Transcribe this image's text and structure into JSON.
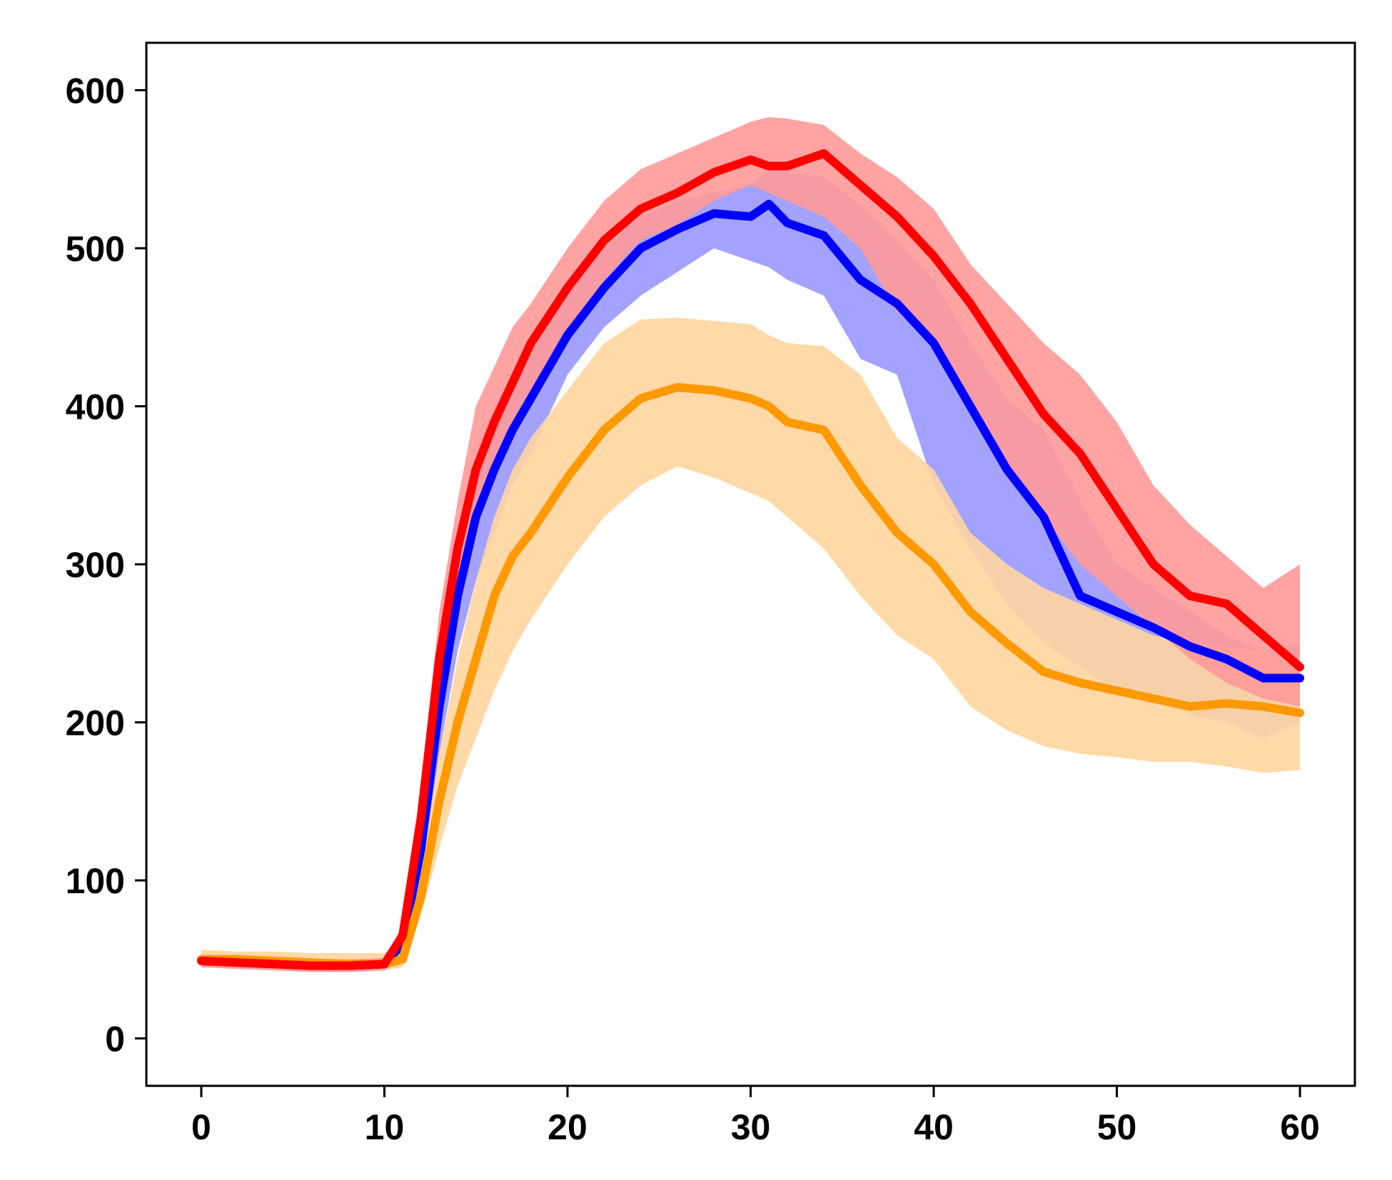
{
  "chart_data": {
    "type": "line",
    "title": "",
    "xlabel": "",
    "ylabel": "",
    "xlim": [
      -3,
      63
    ],
    "ylim": [
      -30,
      630
    ],
    "x_ticks": [
      0,
      10,
      20,
      30,
      40,
      50,
      60
    ],
    "y_ticks": [
      0,
      100,
      200,
      300,
      400,
      500,
      600
    ],
    "x_tick_labels": [
      "0",
      "10",
      "20",
      "30",
      "40",
      "50",
      "60"
    ],
    "y_tick_labels": [
      "0",
      "100",
      "200",
      "300",
      "400",
      "500",
      "600"
    ],
    "grid": false,
    "legend": "none",
    "x": [
      0,
      2,
      4,
      6,
      8,
      10,
      11,
      12,
      13,
      14,
      15,
      16,
      17,
      18,
      20,
      22,
      24,
      26,
      28,
      30,
      31,
      32,
      34,
      36,
      38,
      40,
      42,
      44,
      46,
      48,
      50,
      52,
      54,
      56,
      58,
      60
    ],
    "series": [
      {
        "color": "#0000ff",
        "band_color": "#9999ff",
        "values": [
          50,
          49,
          48,
          47,
          46,
          47,
          60,
          120,
          210,
          280,
          330,
          360,
          385,
          405,
          445,
          475,
          500,
          512,
          522,
          520,
          528,
          516,
          508,
          480,
          465,
          440,
          400,
          360,
          330,
          280,
          270,
          260,
          248,
          240,
          228,
          228
        ],
        "lower": [
          46,
          45,
          44,
          43,
          42,
          43,
          52,
          100,
          180,
          245,
          290,
          320,
          350,
          370,
          420,
          450,
          470,
          485,
          500,
          492,
          488,
          480,
          470,
          430,
          420,
          350,
          310,
          275,
          250,
          235,
          220,
          215,
          205,
          200,
          190,
          200
        ],
        "upper": [
          54,
          53,
          52,
          51,
          50,
          51,
          68,
          140,
          240,
          310,
          370,
          400,
          420,
          440,
          475,
          500,
          520,
          530,
          535,
          540,
          550,
          548,
          545,
          528,
          505,
          480,
          440,
          405,
          385,
          340,
          300,
          285,
          270,
          255,
          245,
          250
        ]
      },
      {
        "color": "#ff9900",
        "band_color": "#ffd59e",
        "values": [
          50,
          50,
          49,
          48,
          47,
          47,
          50,
          90,
          150,
          200,
          240,
          280,
          305,
          320,
          355,
          385,
          405,
          412,
          410,
          405,
          400,
          390,
          385,
          350,
          320,
          300,
          270,
          250,
          232,
          225,
          220,
          215,
          210,
          212,
          210,
          206
        ],
        "lower": [
          45,
          44,
          44,
          43,
          43,
          43,
          45,
          78,
          120,
          160,
          190,
          220,
          245,
          265,
          300,
          330,
          350,
          362,
          355,
          345,
          340,
          330,
          310,
          280,
          255,
          240,
          210,
          195,
          185,
          180,
          178,
          175,
          175,
          172,
          168,
          170
        ],
        "upper": [
          56,
          55,
          55,
          54,
          54,
          54,
          57,
          105,
          180,
          240,
          290,
          330,
          360,
          380,
          410,
          440,
          455,
          456,
          454,
          452,
          445,
          440,
          438,
          420,
          380,
          360,
          320,
          300,
          285,
          275,
          265,
          255,
          250,
          248,
          245,
          240
        ]
      },
      {
        "color": "#ff0000",
        "band_color": "#ff9999",
        "values": [
          49,
          48,
          47,
          46,
          46,
          47,
          65,
          140,
          240,
          310,
          360,
          390,
          415,
          440,
          475,
          505,
          525,
          535,
          548,
          556,
          552,
          552,
          560,
          540,
          520,
          495,
          465,
          430,
          395,
          370,
          335,
          300,
          280,
          275,
          255,
          235
        ],
        "lower": [
          45,
          44,
          43,
          42,
          42,
          43,
          58,
          120,
          210,
          285,
          330,
          360,
          385,
          400,
          440,
          480,
          505,
          515,
          530,
          540,
          535,
          530,
          520,
          500,
          460,
          440,
          400,
          360,
          330,
          300,
          280,
          260,
          240,
          225,
          215,
          210
        ],
        "upper": [
          53,
          52,
          51,
          50,
          50,
          51,
          72,
          160,
          270,
          340,
          400,
          425,
          450,
          465,
          500,
          530,
          550,
          560,
          570,
          580,
          583,
          582,
          578,
          560,
          545,
          525,
          490,
          465,
          440,
          420,
          390,
          350,
          325,
          305,
          285,
          300
        ]
      }
    ]
  }
}
